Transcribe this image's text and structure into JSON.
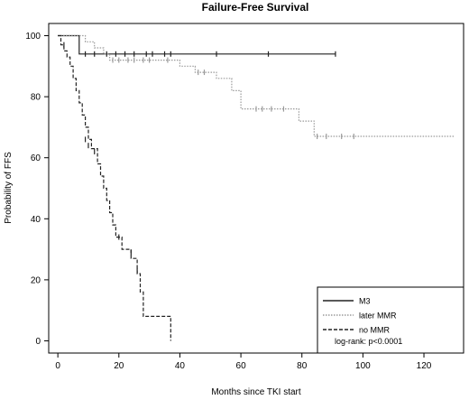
{
  "chart_data": {
    "type": "line",
    "title": "Failure-Free Survival",
    "xlabel": "Months since TKI start",
    "ylabel": "Probability of FFS",
    "xlim": [
      -3,
      133
    ],
    "ylim": [
      -4,
      104
    ],
    "xticks": [
      0,
      20,
      40,
      60,
      80,
      100,
      120
    ],
    "yticks": [
      0,
      20,
      40,
      60,
      80,
      100
    ],
    "grid": false,
    "legend": {
      "position": "bottom-right",
      "note": "log-rank: p<0.0001"
    },
    "series": [
      {
        "name": "M3",
        "style": "solid",
        "color": "#222222",
        "steps": [
          [
            0,
            100
          ],
          [
            7,
            100
          ],
          [
            7,
            94
          ],
          [
            91,
            94
          ]
        ],
        "censored": [
          [
            9,
            94
          ],
          [
            12,
            94
          ],
          [
            16,
            94
          ],
          [
            19,
            94
          ],
          [
            22,
            94
          ],
          [
            25,
            94
          ],
          [
            29,
            94
          ],
          [
            31,
            94
          ],
          [
            35,
            94
          ],
          [
            37,
            94
          ],
          [
            52,
            94
          ],
          [
            69,
            94
          ],
          [
            91,
            94
          ]
        ]
      },
      {
        "name": "later MMR",
        "style": "dotted",
        "color": "#9a9a9a",
        "steps": [
          [
            0,
            100
          ],
          [
            9,
            100
          ],
          [
            9,
            98
          ],
          [
            12,
            98
          ],
          [
            12,
            96
          ],
          [
            15,
            96
          ],
          [
            15,
            94
          ],
          [
            17,
            94
          ],
          [
            17,
            92
          ],
          [
            40,
            92
          ],
          [
            40,
            90
          ],
          [
            45,
            90
          ],
          [
            45,
            88
          ],
          [
            52,
            88
          ],
          [
            52,
            86
          ],
          [
            57,
            86
          ],
          [
            57,
            82
          ],
          [
            60,
            82
          ],
          [
            60,
            76
          ],
          [
            79,
            76
          ],
          [
            79,
            72
          ],
          [
            84,
            72
          ],
          [
            84,
            67
          ],
          [
            130,
            67
          ]
        ],
        "censored": [
          [
            18,
            92
          ],
          [
            20,
            92
          ],
          [
            23,
            92
          ],
          [
            25,
            92
          ],
          [
            28,
            92
          ],
          [
            30,
            92
          ],
          [
            36,
            92
          ],
          [
            46,
            88
          ],
          [
            48,
            88
          ],
          [
            65,
            76
          ],
          [
            67,
            76
          ],
          [
            70,
            76
          ],
          [
            74,
            76
          ],
          [
            85,
            67
          ],
          [
            88,
            67
          ],
          [
            93,
            67
          ],
          [
            97,
            67
          ]
        ]
      },
      {
        "name": "no MMR",
        "style": "dashed",
        "color": "#222222",
        "steps": [
          [
            0,
            100
          ],
          [
            1,
            100
          ],
          [
            1,
            97
          ],
          [
            2,
            97
          ],
          [
            2,
            95
          ],
          [
            3,
            95
          ],
          [
            3,
            93
          ],
          [
            4,
            93
          ],
          [
            4,
            90
          ],
          [
            5,
            90
          ],
          [
            5,
            86
          ],
          [
            6,
            86
          ],
          [
            6,
            82
          ],
          [
            7,
            82
          ],
          [
            7,
            78
          ],
          [
            8,
            78
          ],
          [
            8,
            74
          ],
          [
            9,
            74
          ],
          [
            9,
            70
          ],
          [
            10,
            70
          ],
          [
            10,
            66
          ],
          [
            11,
            66
          ],
          [
            11,
            63
          ],
          [
            13,
            63
          ],
          [
            13,
            58
          ],
          [
            14,
            58
          ],
          [
            14,
            54
          ],
          [
            15,
            54
          ],
          [
            15,
            50
          ],
          [
            16,
            50
          ],
          [
            16,
            46
          ],
          [
            17,
            46
          ],
          [
            17,
            42
          ],
          [
            18,
            42
          ],
          [
            18,
            38
          ],
          [
            19,
            38
          ],
          [
            19,
            34
          ],
          [
            21,
            34
          ],
          [
            21,
            30
          ],
          [
            24,
            30
          ],
          [
            24,
            27
          ],
          [
            26,
            27
          ],
          [
            26,
            22
          ],
          [
            27,
            22
          ],
          [
            27,
            16
          ],
          [
            28,
            16
          ],
          [
            28,
            8
          ],
          [
            37,
            8
          ],
          [
            37,
            0
          ]
        ],
        "censored": [
          [
            2,
            97
          ],
          [
            9,
            66
          ],
          [
            10,
            64
          ],
          [
            12,
            62
          ],
          [
            20,
            34
          ],
          [
            24,
            29
          ],
          [
            26,
            23
          ]
        ]
      }
    ]
  }
}
